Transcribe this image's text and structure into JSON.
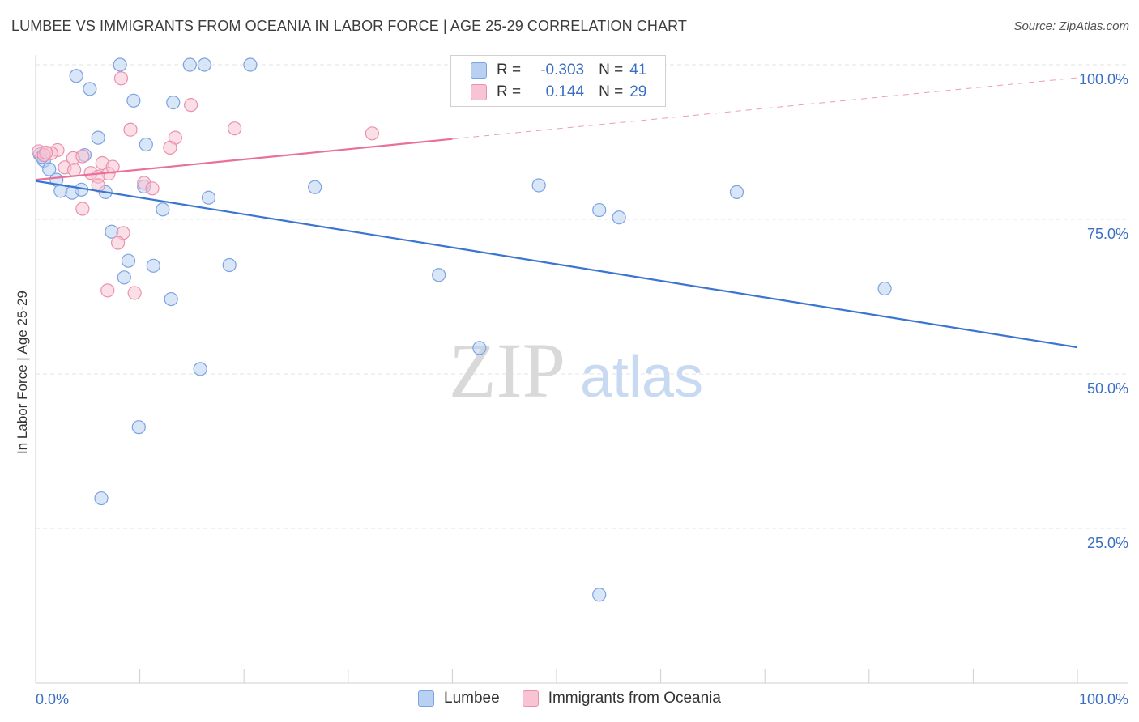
{
  "header": {
    "title": "LUMBEE VS IMMIGRANTS FROM OCEANIA IN LABOR FORCE | AGE 25-29 CORRELATION CHART",
    "source": "Source: ZipAtlas.com"
  },
  "legend": {
    "r_label": "R =",
    "n_label": "N =",
    "series": [
      {
        "name": "Lumbee",
        "r": "-0.303",
        "n": "41"
      },
      {
        "name": "Immigrants from Oceania",
        "r": "0.144",
        "n": "29"
      }
    ]
  },
  "watermark": {
    "zip": "ZIP",
    "atlas": "atlas"
  },
  "colors": {
    "lumbee_fill": "#b8d1f3",
    "lumbee_stroke": "#7ba3e0",
    "lumbee_line": "#3a75d0",
    "oceania_fill": "#f8c4d4",
    "oceania_stroke": "#ec8fae",
    "oceania_line": "#e8709a",
    "axis_text": "#3a6fc4",
    "grid": "#e3e3e3"
  },
  "chart_data": {
    "type": "scatter",
    "title": "LUMBEE VS IMMIGRANTS FROM OCEANIA IN LABOR FORCE | AGE 25-29 CORRELATION CHART",
    "xlabel": "",
    "ylabel": "In Labor Force | Age 25-29",
    "xlim": [
      0,
      100
    ],
    "ylim": [
      0,
      100
    ],
    "x_tick_labels": [
      "0.0%",
      "100.0%"
    ],
    "y_ticks": [
      25,
      50,
      75,
      100
    ],
    "y_tick_labels": [
      "25.0%",
      "50.0%",
      "75.0%",
      "100.0%"
    ],
    "grid": true,
    "series": [
      {
        "name": "Lumbee",
        "points": [
          [
            8.1,
            100.0
          ],
          [
            14.8,
            100.0
          ],
          [
            16.2,
            100.0
          ],
          [
            20.6,
            100.0
          ],
          [
            3.9,
            98.2
          ],
          [
            5.2,
            96.1
          ],
          [
            9.4,
            94.2
          ],
          [
            13.2,
            93.9
          ],
          [
            6.0,
            88.2
          ],
          [
            10.6,
            87.1
          ],
          [
            0.4,
            85.5
          ],
          [
            4.7,
            85.4
          ],
          [
            0.8,
            84.5
          ],
          [
            1.3,
            83.1
          ],
          [
            2.0,
            81.4
          ],
          [
            10.4,
            80.3
          ],
          [
            26.8,
            80.2
          ],
          [
            48.3,
            80.5
          ],
          [
            2.4,
            79.6
          ],
          [
            3.5,
            79.3
          ],
          [
            4.4,
            79.8
          ],
          [
            6.7,
            79.4
          ],
          [
            16.6,
            78.5
          ],
          [
            67.3,
            79.4
          ],
          [
            12.2,
            76.6
          ],
          [
            54.1,
            76.5
          ],
          [
            56.0,
            75.3
          ],
          [
            7.3,
            73.0
          ],
          [
            8.9,
            68.3
          ],
          [
            11.3,
            67.5
          ],
          [
            18.6,
            67.6
          ],
          [
            8.5,
            65.6
          ],
          [
            38.7,
            66.0
          ],
          [
            81.5,
            63.8
          ],
          [
            13.0,
            62.1
          ],
          [
            42.6,
            54.2
          ],
          [
            15.8,
            50.8
          ],
          [
            9.9,
            41.4
          ],
          [
            6.3,
            29.9
          ],
          [
            54.1,
            14.3
          ],
          [
            0.6,
            85.1
          ]
        ]
      },
      {
        "name": "Immigrants from Oceania",
        "points": [
          [
            8.2,
            97.8
          ],
          [
            14.9,
            93.5
          ],
          [
            19.1,
            89.7
          ],
          [
            9.1,
            89.5
          ],
          [
            32.3,
            88.9
          ],
          [
            13.4,
            88.2
          ],
          [
            12.9,
            86.6
          ],
          [
            0.3,
            86.0
          ],
          [
            2.1,
            86.2
          ],
          [
            1.5,
            85.7
          ],
          [
            0.8,
            85.4
          ],
          [
            3.6,
            84.9
          ],
          [
            4.5,
            85.2
          ],
          [
            2.8,
            83.4
          ],
          [
            3.7,
            83.0
          ],
          [
            6.4,
            84.1
          ],
          [
            5.3,
            82.5
          ],
          [
            7.0,
            82.4
          ],
          [
            7.4,
            83.5
          ],
          [
            6.0,
            81.9
          ],
          [
            10.4,
            80.9
          ],
          [
            11.2,
            80.0
          ],
          [
            6.0,
            80.5
          ],
          [
            4.5,
            76.7
          ],
          [
            8.4,
            72.8
          ],
          [
            7.9,
            71.2
          ],
          [
            6.9,
            63.5
          ],
          [
            9.5,
            63.1
          ],
          [
            1.0,
            85.8
          ]
        ]
      }
    ],
    "trend_lines": [
      {
        "name": "Lumbee",
        "from": [
          0,
          81.2
        ],
        "to": [
          100,
          54.3
        ],
        "style": "solid"
      },
      {
        "name": "Immigrants from Oceania",
        "from": [
          0,
          81.4
        ],
        "to": [
          40,
          88.0
        ],
        "style": "solid"
      },
      {
        "name": "Immigrants from Oceania (extension)",
        "from": [
          40,
          88.0
        ],
        "to": [
          100,
          97.9
        ],
        "style": "dashed"
      }
    ]
  }
}
